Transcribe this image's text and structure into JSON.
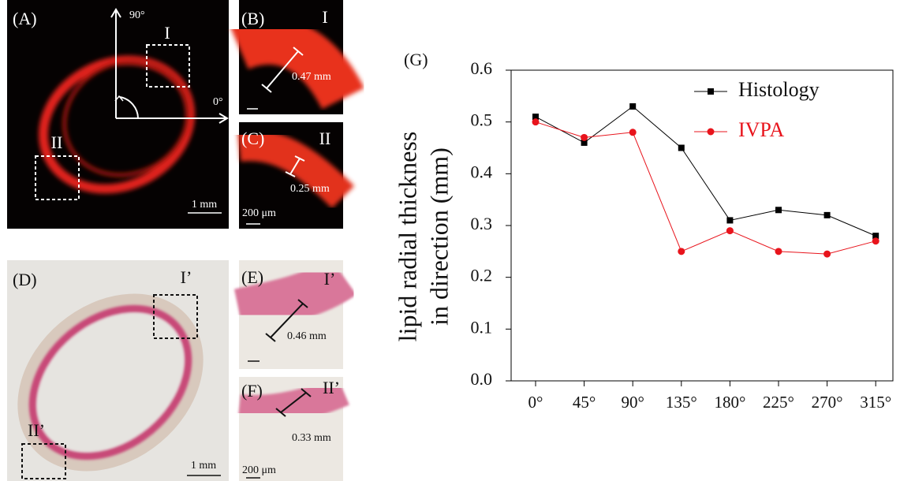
{
  "panels": {
    "a": {
      "label": "(A)",
      "angle_90": "90°",
      "angle_0": "0°",
      "region_1": "I",
      "region_2": "II",
      "scale": "1 mm"
    },
    "b": {
      "label": "(B)",
      "region": "I",
      "measurement": "0.47 mm"
    },
    "c": {
      "label": "(C)",
      "region": "II",
      "measurement": "0.25 mm",
      "scale": "200 μm"
    },
    "d": {
      "label": "(D)",
      "region_1": "I’",
      "region_2": "II’",
      "scale": "1 mm"
    },
    "e": {
      "label": "(E)",
      "region": "I’",
      "measurement": "0.46 mm"
    },
    "f": {
      "label": "(F)",
      "region": "II’",
      "measurement": "0.33 mm",
      "scale": "200 μm"
    }
  },
  "chart_data": {
    "type": "line",
    "title": "(G)",
    "ylabel": [
      "lipid  radial thickness",
      "in  direction (mm)"
    ],
    "categories": [
      "0°",
      "45°",
      "90°",
      "135°",
      "180°",
      "225°",
      "270°",
      "315°"
    ],
    "series": [
      {
        "name": "Histology",
        "color": "#000000",
        "marker": "square",
        "values": [
          0.51,
          0.46,
          0.53,
          0.45,
          0.31,
          0.33,
          0.32,
          0.28
        ]
      },
      {
        "name": "IVPA",
        "color": "#e8141c",
        "marker": "circle",
        "values": [
          0.5,
          0.47,
          0.48,
          0.25,
          0.29,
          0.25,
          0.245,
          0.27
        ]
      }
    ],
    "ylim": [
      0,
      0.6
    ],
    "yticks": [
      {
        "value": 0,
        "label": "0.0"
      },
      0.1,
      0.2,
      0.3,
      0.4,
      0.5,
      0.6
    ],
    "grid": false,
    "legend": "upper right"
  }
}
